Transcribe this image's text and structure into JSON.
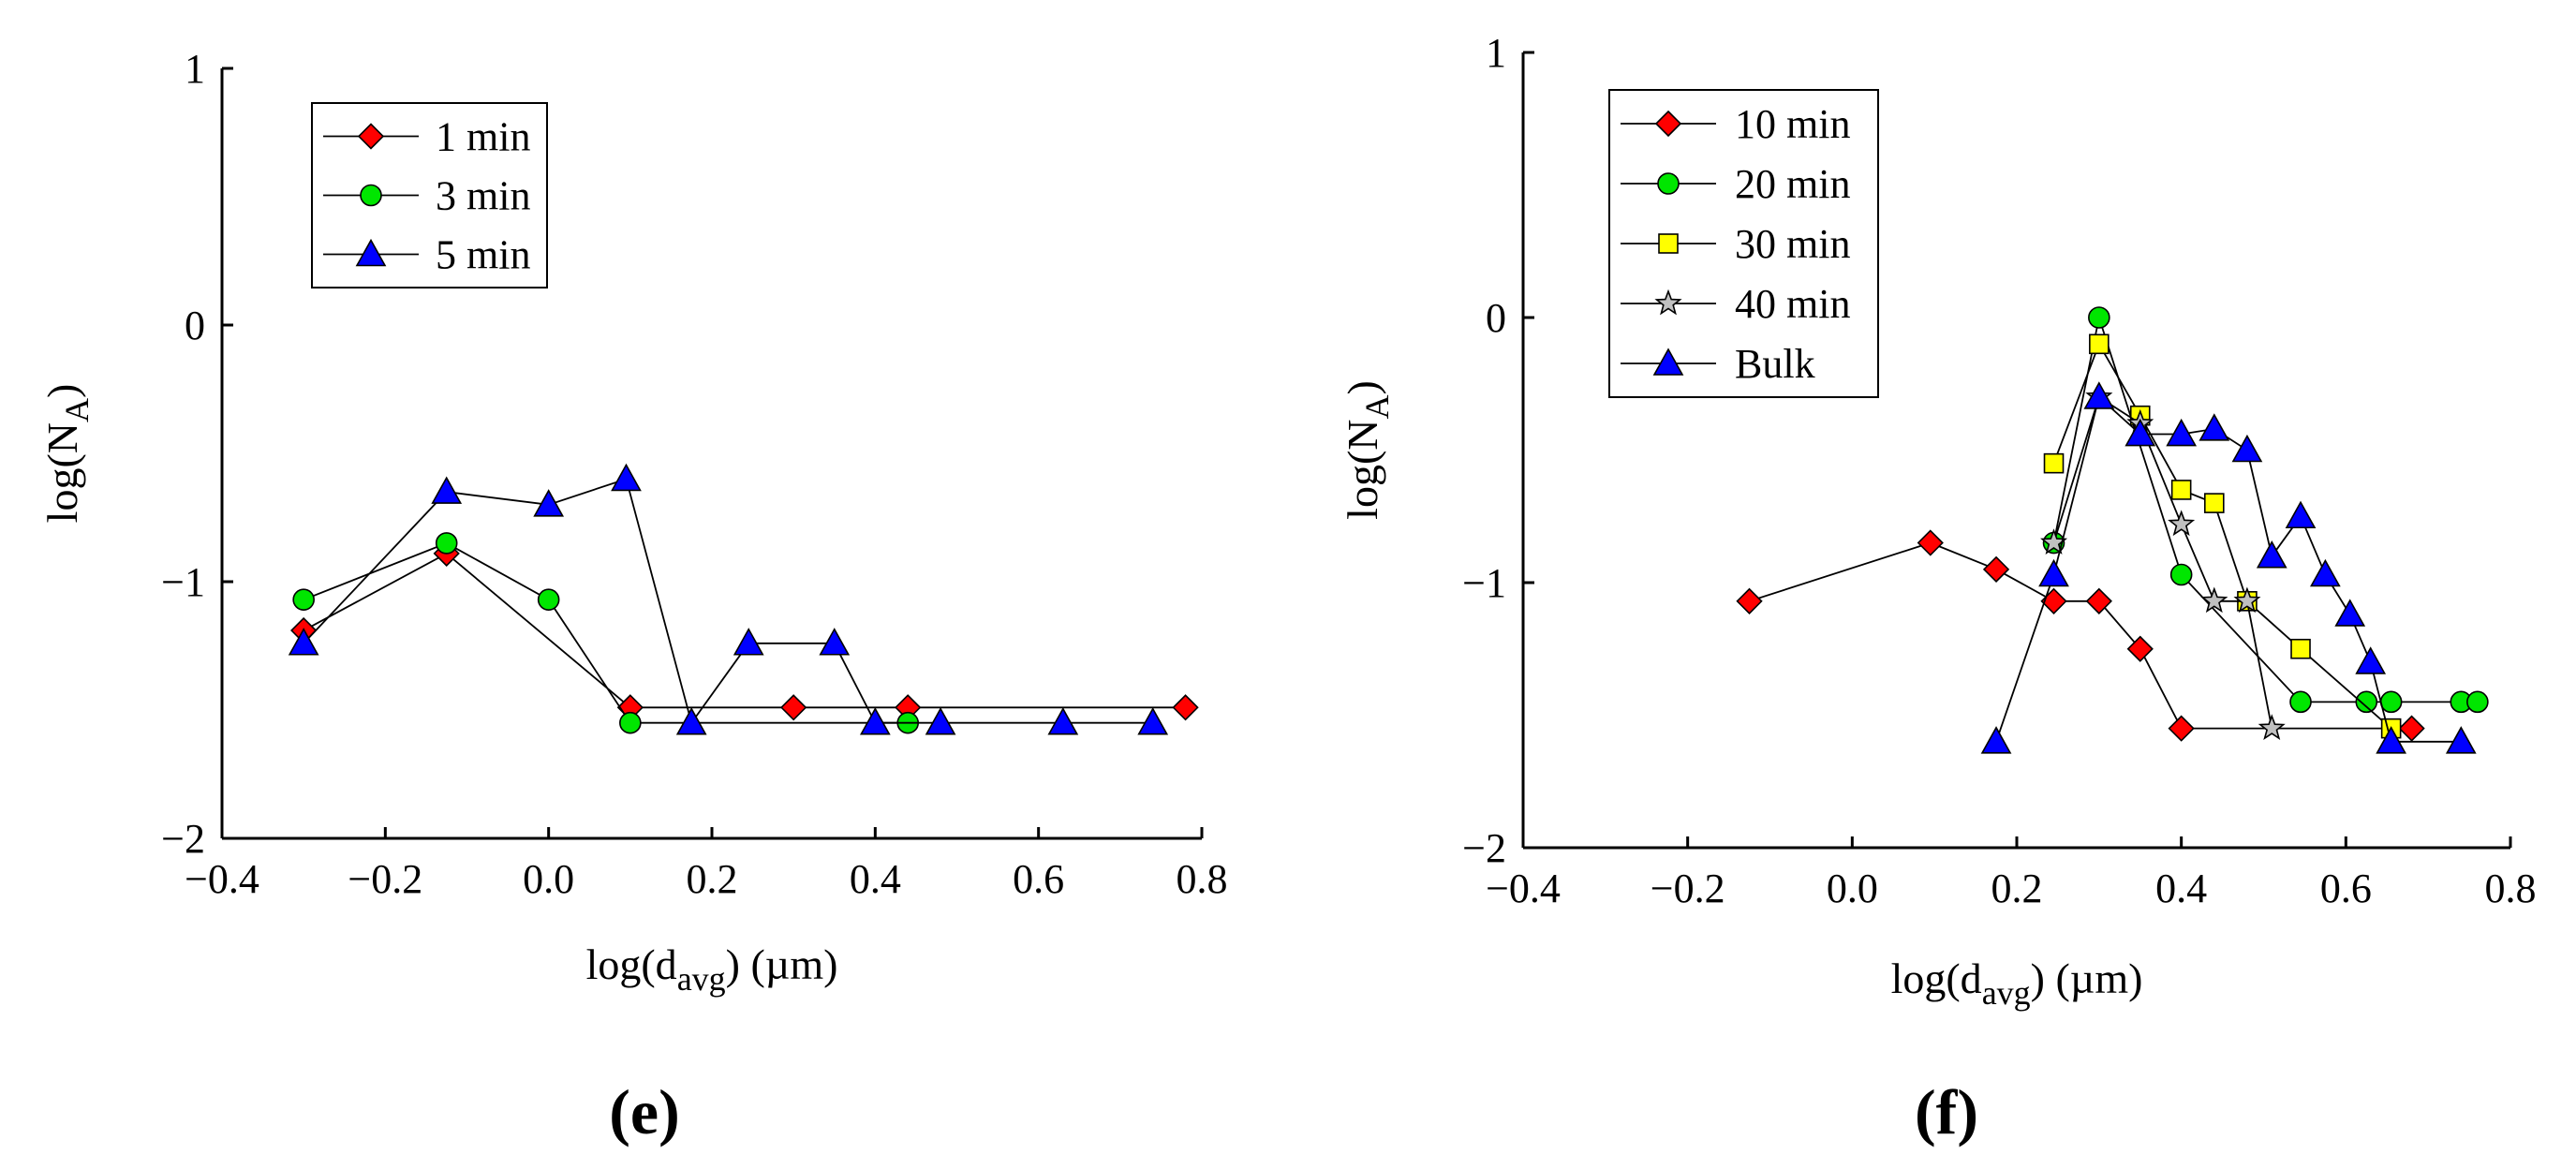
{
  "chart_data": [
    {
      "type": "line",
      "panel": "(e)",
      "xlabel": "log(d",
      "xlabel_sub": "avg",
      "xlabel_unit": ") (µm)",
      "ylabel": "log(N",
      "ylabel_sub": "A",
      "ylabel_end": ")",
      "xlim": [
        -0.4,
        0.8
      ],
      "ylim": [
        -2,
        1
      ],
      "xticks": [
        -0.4,
        -0.2,
        0.0,
        0.2,
        0.4,
        0.6,
        0.8
      ],
      "xtick_labels": [
        "−0.4",
        "−0.2",
        "0.0",
        "0.2",
        "0.4",
        "0.6",
        "0.8"
      ],
      "yticks": [
        -2,
        -1,
        0,
        1
      ],
      "ytick_labels": [
        "−2",
        "−1",
        "0",
        "1"
      ],
      "legend_position": "top-left",
      "series": [
        {
          "name": "1 min",
          "marker": "diamond",
          "color": "#ff0000",
          "x": [
            -0.3,
            -0.125,
            0.1,
            0.3,
            0.44,
            0.78
          ],
          "y": [
            -1.19,
            -0.89,
            -1.49,
            -1.49,
            -1.49,
            -1.49
          ]
        },
        {
          "name": "3 min",
          "marker": "circle",
          "color": "#00e600",
          "x": [
            -0.3,
            -0.125,
            0.0,
            0.1,
            0.44
          ],
          "y": [
            -1.07,
            -0.85,
            -1.07,
            -1.55,
            -1.55
          ]
        },
        {
          "name": "5 min",
          "marker": "triangle",
          "color": "#0000ff",
          "x": [
            -0.3,
            -0.125,
            0.0,
            0.095,
            0.175,
            0.245,
            0.35,
            0.4,
            0.48,
            0.63,
            0.74
          ],
          "y": [
            -1.24,
            -0.65,
            -0.7,
            -0.6,
            -1.55,
            -1.24,
            -1.24,
            -1.55,
            -1.55,
            -1.55,
            -1.55
          ]
        }
      ]
    },
    {
      "type": "line",
      "panel": "(f)",
      "xlabel": "log(d",
      "xlabel_sub": "avg",
      "xlabel_unit": ") (µm)",
      "ylabel": "log(N",
      "ylabel_sub": "A",
      "ylabel_end": ")",
      "xlim": [
        -0.4,
        0.8
      ],
      "ylim": [
        -2,
        1
      ],
      "xticks": [
        -0.4,
        -0.2,
        0.0,
        0.2,
        0.4,
        0.6,
        0.8
      ],
      "xtick_labels": [
        "−0.4",
        "−0.2",
        "0.0",
        "0.2",
        "0.4",
        "0.6",
        "0.8"
      ],
      "yticks": [
        -2,
        -1,
        0,
        1
      ],
      "ytick_labels": [
        "−2",
        "−1",
        "0",
        "1"
      ],
      "legend_position": "top-left",
      "series": [
        {
          "name": "10 min",
          "marker": "diamond",
          "color": "#ff0000",
          "x": [
            -0.125,
            0.095,
            0.175,
            0.245,
            0.3,
            0.35,
            0.4,
            0.68
          ],
          "y": [
            -1.07,
            -0.85,
            -0.95,
            -1.07,
            -1.07,
            -1.25,
            -1.55,
            -1.55
          ]
        },
        {
          "name": "20 min",
          "marker": "circle",
          "color": "#00e600",
          "x": [
            0.245,
            0.3,
            0.4,
            0.545,
            0.625,
            0.655,
            0.74,
            0.76
          ],
          "y": [
            -0.85,
            0.0,
            -0.97,
            -1.45,
            -1.45,
            -1.45,
            -1.45,
            -1.45
          ]
        },
        {
          "name": "30 min",
          "marker": "square",
          "color": "#ffff00",
          "x": [
            0.245,
            0.3,
            0.35,
            0.4,
            0.44,
            0.48,
            0.545,
            0.655
          ],
          "y": [
            -0.55,
            -0.1,
            -0.37,
            -0.65,
            -0.7,
            -1.07,
            -1.25,
            -1.55
          ]
        },
        {
          "name": "40 min",
          "marker": "star",
          "color": "#c0c0c0",
          "x": [
            0.245,
            0.3,
            0.35,
            0.4,
            0.44,
            0.48,
            0.51
          ],
          "y": [
            -0.85,
            -0.3,
            -0.4,
            -0.78,
            -1.07,
            -1.07,
            -1.55
          ]
        },
        {
          "name": "Bulk",
          "marker": "triangle",
          "color": "#0000ff",
          "x": [
            0.175,
            0.245,
            0.3,
            0.35,
            0.4,
            0.44,
            0.48,
            0.51,
            0.545,
            0.575,
            0.605,
            0.63,
            0.655,
            0.74
          ],
          "y": [
            -1.6,
            -0.97,
            -0.3,
            -0.44,
            -0.44,
            -0.42,
            -0.5,
            -0.9,
            -0.75,
            -0.97,
            -1.12,
            -1.3,
            -1.6,
            -1.6
          ]
        }
      ]
    }
  ]
}
